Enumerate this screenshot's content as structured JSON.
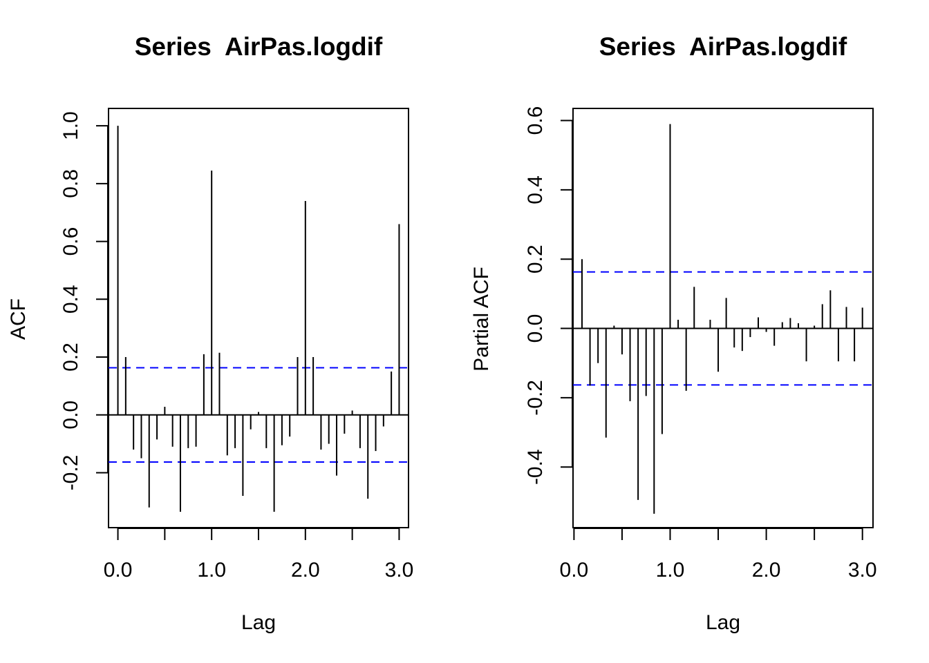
{
  "chart_data": [
    {
      "type": "bar",
      "subtype": "acf",
      "title": "Series  AirPas.logdif",
      "xlabel": "Lag",
      "ylabel": "ACF",
      "xlim": [
        -0.1,
        3.1
      ],
      "ylim": [
        -0.39,
        1.06
      ],
      "x_ticks": [
        "0.0",
        "1.0",
        "2.0",
        "3.0"
      ],
      "x_tick_values": [
        0,
        0.5,
        1,
        1.5,
        2,
        2.5,
        3
      ],
      "y_ticks": [
        "-0.2",
        "0.0",
        "0.2",
        "0.4",
        "0.6",
        "0.8",
        "1.0"
      ],
      "y_tick_values": [
        -0.2,
        0,
        0.2,
        0.4,
        0.6,
        0.8,
        1.0
      ],
      "ci": 0.163,
      "ci_color": "#0000ff",
      "x": [
        0,
        0.0833,
        0.1667,
        0.25,
        0.3333,
        0.4167,
        0.5,
        0.5833,
        0.6667,
        0.75,
        0.8333,
        0.9167,
        1.0,
        1.0833,
        1.1667,
        1.25,
        1.3333,
        1.4167,
        1.5,
        1.5833,
        1.6667,
        1.75,
        1.8333,
        1.9167,
        2.0,
        2.0833,
        2.1667,
        2.25,
        2.3333,
        2.4167,
        2.5,
        2.5833,
        2.6667,
        2.75,
        2.8333,
        2.9167,
        3.0
      ],
      "values": [
        1.0,
        0.2,
        -0.12,
        -0.15,
        -0.32,
        -0.085,
        0.028,
        -0.11,
        -0.335,
        -0.115,
        -0.11,
        0.21,
        0.845,
        0.215,
        -0.14,
        -0.115,
        -0.28,
        -0.05,
        0.01,
        -0.115,
        -0.335,
        -0.105,
        -0.075,
        0.2,
        0.74,
        0.2,
        -0.12,
        -0.1,
        -0.21,
        -0.065,
        0.015,
        -0.115,
        -0.29,
        -0.125,
        -0.04,
        0.15,
        0.66
      ]
    },
    {
      "type": "bar",
      "subtype": "pacf",
      "title": "Series  AirPas.logdif",
      "xlabel": "Lag",
      "ylabel": "Partial ACF",
      "xlim": [
        -0.01,
        3.11
      ],
      "ylim": [
        -0.575,
        0.635
      ],
      "x_ticks": [
        "0.0",
        "1.0",
        "2.0",
        "3.0"
      ],
      "x_tick_values": [
        0,
        0.5,
        1,
        1.5,
        2,
        2.5,
        3
      ],
      "y_ticks": [
        "-0.4",
        "-0.2",
        "0.0",
        "0.2",
        "0.4",
        "0.6"
      ],
      "y_tick_values": [
        -0.4,
        -0.2,
        0,
        0.2,
        0.4,
        0.6
      ],
      "ci": 0.163,
      "ci_color": "#0000ff",
      "x": [
        0.0833,
        0.1667,
        0.25,
        0.3333,
        0.4167,
        0.5,
        0.5833,
        0.6667,
        0.75,
        0.8333,
        0.9167,
        1.0,
        1.0833,
        1.1667,
        1.25,
        1.3333,
        1.4167,
        1.5,
        1.5833,
        1.6667,
        1.75,
        1.8333,
        1.9167,
        2.0,
        2.0833,
        2.1667,
        2.25,
        2.3333,
        2.4167,
        2.5,
        2.5833,
        2.6667,
        2.75,
        2.8333,
        2.9167,
        3.0
      ],
      "values": [
        0.2,
        -0.165,
        -0.1,
        -0.315,
        0.008,
        -0.075,
        -0.21,
        -0.495,
        -0.195,
        -0.535,
        -0.305,
        0.59,
        0.025,
        -0.18,
        0.12,
        0.0,
        0.025,
        -0.125,
        0.088,
        -0.055,
        -0.065,
        -0.025,
        0.032,
        -0.01,
        -0.05,
        0.018,
        0.03,
        0.015,
        -0.095,
        0.008,
        0.07,
        0.11,
        -0.095,
        0.062,
        -0.095,
        0.06
      ]
    }
  ]
}
